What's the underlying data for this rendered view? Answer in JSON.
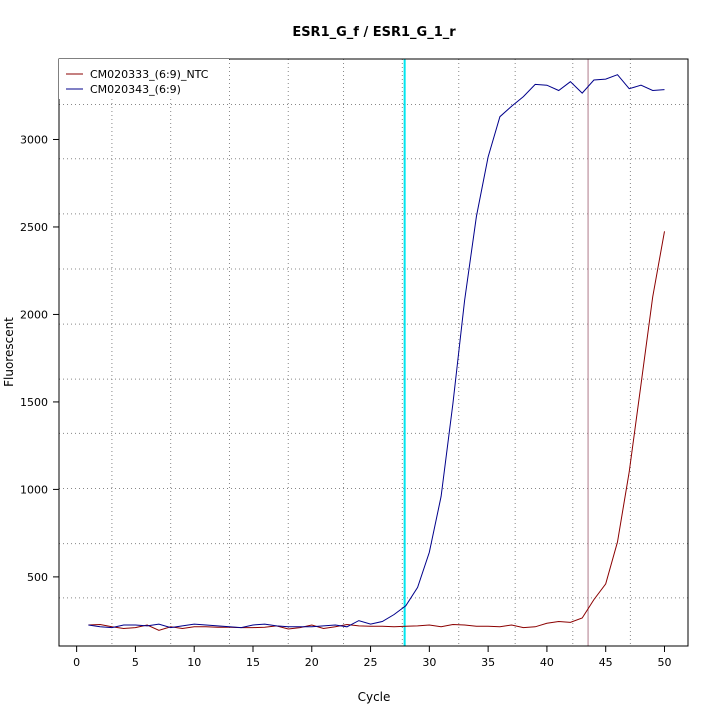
{
  "chart_data": {
    "type": "line",
    "title": "ESR1_G_f / ESR1_G_1_r",
    "xlabel": "Cycle",
    "ylabel": "Fluorescent",
    "xlim": [
      -1.5,
      52
    ],
    "ylim": [
      105,
      3460
    ],
    "x_ticks": [
      0,
      5,
      10,
      15,
      20,
      25,
      30,
      35,
      40,
      45,
      50
    ],
    "y_ticks": [
      500,
      1000,
      1500,
      2000,
      2500,
      3000
    ],
    "x_grid": [
      3,
      8,
      13,
      18,
      22.7,
      27.7,
      32.5,
      37.3,
      42.2,
      47.1
    ],
    "y_grid": [
      380,
      690,
      1005,
      1320,
      1630,
      1945,
      2260,
      2575,
      2890,
      3200
    ],
    "grid": true,
    "legend_position": "top-left",
    "vlines": [
      {
        "x": 27.9,
        "color": "#00e5ee"
      },
      {
        "x": 43.5,
        "color": "#b07a8a"
      }
    ],
    "series": [
      {
        "name": "CM020333_(6:9)_NTC",
        "color": "#8b0000",
        "x": [
          1,
          2,
          3,
          4,
          5,
          6,
          7,
          8,
          9,
          10,
          11,
          12,
          13,
          14,
          15,
          16,
          17,
          18,
          19,
          20,
          21,
          22,
          23,
          24,
          25,
          26,
          27,
          28,
          29,
          30,
          31,
          32,
          33,
          34,
          35,
          36,
          37,
          38,
          39,
          40,
          41,
          42,
          43,
          44,
          45,
          46,
          47,
          48,
          49,
          50
        ],
        "y": [
          225,
          228,
          215,
          205,
          210,
          225,
          195,
          215,
          205,
          215,
          215,
          212,
          212,
          210,
          210,
          212,
          220,
          202,
          210,
          225,
          205,
          215,
          228,
          220,
          218,
          218,
          215,
          218,
          220,
          225,
          215,
          228,
          225,
          218,
          218,
          215,
          225,
          210,
          215,
          235,
          245,
          240,
          265,
          370,
          460,
          700,
          1100,
          1600,
          2100,
          2475
        ]
      },
      {
        "name": "CM020343_(6:9)",
        "color": "#00008b",
        "x": [
          1,
          2,
          3,
          4,
          5,
          6,
          7,
          8,
          9,
          10,
          11,
          12,
          13,
          14,
          15,
          16,
          17,
          18,
          19,
          20,
          21,
          22,
          23,
          24,
          25,
          26,
          27,
          28,
          29,
          30,
          31,
          32,
          33,
          34,
          35,
          36,
          37,
          38,
          39,
          40,
          41,
          42,
          43,
          44,
          45,
          46,
          47,
          48,
          49,
          50
        ],
        "y": [
          225,
          215,
          210,
          225,
          225,
          220,
          230,
          210,
          220,
          230,
          225,
          220,
          215,
          210,
          225,
          230,
          220,
          215,
          215,
          215,
          220,
          225,
          215,
          250,
          230,
          245,
          285,
          335,
          440,
          640,
          960,
          1490,
          2080,
          2560,
          2900,
          3130,
          3190,
          3245,
          3315,
          3310,
          3280,
          3330,
          3265,
          3340,
          3345,
          3370,
          3290,
          3310,
          3280,
          3285
        ]
      }
    ]
  }
}
